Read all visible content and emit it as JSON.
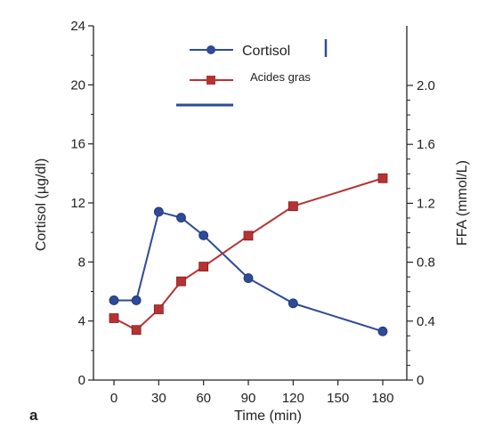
{
  "chart_data": {
    "type": "line",
    "panel_label": "a",
    "xlabel": "Time (min)",
    "ylabel_left": "Cortisol (µg/dl)",
    "ylabel_right": "FFA (mmol/L)",
    "x_ticks": [
      "0",
      "30",
      "60",
      "90",
      "120",
      "150",
      "180"
    ],
    "x_tick_values": [
      0,
      30,
      60,
      90,
      120,
      150,
      180
    ],
    "xlim": [
      -10,
      185
    ],
    "y_left_ticks": [
      "0",
      "4",
      "8",
      "12",
      "16",
      "20",
      "24"
    ],
    "y_left_tick_values": [
      0,
      4,
      8,
      12,
      16,
      20,
      24
    ],
    "ylim_left": [
      0,
      24
    ],
    "y_right_ticks": [
      "0",
      "0.4",
      "0.8",
      "1.2",
      "1.6",
      "2.0"
    ],
    "y_right_tick_values": [
      0,
      0.4,
      0.8,
      1.2,
      1.6,
      2.0
    ],
    "ylim_right": [
      0,
      2.0
    ],
    "series": [
      {
        "name": "Cortisol",
        "axis": "left",
        "marker": "circle",
        "color": "#2e4a9a",
        "x": [
          0,
          15,
          30,
          45,
          60,
          90,
          120,
          180
        ],
        "y": [
          5.4,
          5.4,
          11.4,
          11.0,
          9.8,
          6.9,
          5.2,
          3.3
        ]
      },
      {
        "name": "Acides gras",
        "axis": "right",
        "marker": "square",
        "color": "#b83232",
        "x": [
          0,
          15,
          30,
          45,
          60,
          90,
          120,
          180
        ],
        "y": [
          0.42,
          0.34,
          0.48,
          0.67,
          0.77,
          0.98,
          1.18,
          1.37
        ]
      }
    ],
    "legend_position": "top"
  }
}
